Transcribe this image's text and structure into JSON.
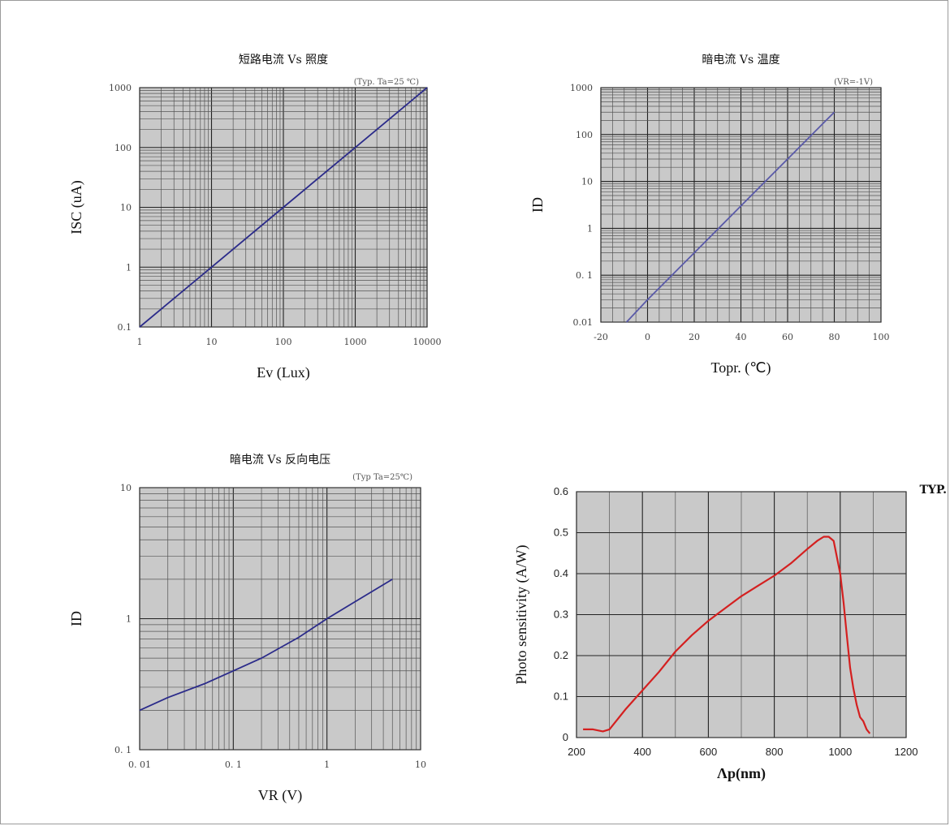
{
  "chart_data": [
    {
      "type": "line",
      "title": "短路电流 Vs 照度",
      "note": "(Typ. Ta=25 ℃)",
      "xlabel": "Ev (Lux)",
      "ylabel": "ISC (uA)",
      "x_scale": "log",
      "y_scale": "log",
      "xlim": [
        1,
        10000
      ],
      "ylim": [
        0.1,
        1000
      ],
      "x_ticks": [
        "1",
        "10",
        "100",
        "1000",
        "10000"
      ],
      "y_ticks": [
        "0.1",
        "1",
        "10",
        "100",
        "1000"
      ],
      "grid": true,
      "colors": {
        "line": "#2b2b8a",
        "plot_bg": "#c9c9c9"
      },
      "series": [
        {
          "x": [
            1,
            10,
            100,
            1000,
            10000
          ],
          "y": [
            0.1,
            1,
            10,
            100,
            1000
          ]
        }
      ]
    },
    {
      "type": "line",
      "title": "暗电流 Vs 温度",
      "note": "(VR=-1V)",
      "xlabel": "Topr. (℃)",
      "ylabel": "ID",
      "x_scale": "linear",
      "y_scale": "log",
      "xlim": [
        -20,
        100
      ],
      "ylim": [
        0.01,
        1000
      ],
      "x_ticks": [
        "-20",
        "0",
        "20",
        "40",
        "60",
        "80",
        "100"
      ],
      "y_ticks": [
        "0.01",
        "0. 1",
        "1",
        "10",
        "100",
        "1000"
      ],
      "grid": true,
      "colors": {
        "line": "#5a5aa8",
        "plot_bg": "#c9c9c9"
      },
      "series": [
        {
          "x": [
            -9,
            0,
            20,
            40,
            60,
            80
          ],
          "y": [
            0.01,
            0.03,
            0.3,
            3,
            30,
            300
          ]
        }
      ]
    },
    {
      "type": "line",
      "title": "暗电流 Vs 反向电压",
      "note": "(Typ Ta=25℃)",
      "xlabel": "VR (V)",
      "ylabel": "ID",
      "x_scale": "log",
      "y_scale": "log",
      "xlim": [
        0.01,
        10
      ],
      "ylim": [
        0.1,
        10
      ],
      "x_ticks": [
        "0. 01",
        "0. 1",
        "1",
        "10"
      ],
      "y_ticks": [
        "0. 1",
        "1",
        "10"
      ],
      "grid": true,
      "colors": {
        "line": "#2b2b8a",
        "plot_bg": "#c9c9c9"
      },
      "series": [
        {
          "x": [
            0.01,
            0.02,
            0.05,
            0.1,
            0.2,
            0.5,
            1,
            2,
            5
          ],
          "y": [
            0.2,
            0.25,
            0.32,
            0.4,
            0.5,
            0.72,
            1.0,
            1.35,
            2.0
          ]
        }
      ]
    },
    {
      "type": "line",
      "title": "",
      "note": "TYP.",
      "xlabel": "Λp(nm)",
      "ylabel": "Photo sensitivity (A/W)",
      "x_scale": "linear",
      "y_scale": "linear",
      "xlim": [
        200,
        1200
      ],
      "ylim": [
        0,
        0.6
      ],
      "x_ticks": [
        "200",
        "400",
        "600",
        "800",
        "1000",
        "1200"
      ],
      "y_ticks": [
        "0",
        "0.1",
        "0.2",
        "0.3",
        "0.4",
        "0.5",
        "0.6"
      ],
      "grid": true,
      "colors": {
        "line": "#d42020",
        "plot_bg": "#ffffff"
      },
      "series": [
        {
          "x": [
            220,
            250,
            280,
            300,
            320,
            350,
            400,
            450,
            500,
            550,
            600,
            650,
            700,
            750,
            800,
            850,
            900,
            930,
            950,
            965,
            980,
            1000,
            1010,
            1020,
            1030,
            1040,
            1050,
            1060,
            1070,
            1080,
            1090
          ],
          "y": [
            0.02,
            0.02,
            0.015,
            0.02,
            0.04,
            0.07,
            0.115,
            0.16,
            0.21,
            0.25,
            0.285,
            0.315,
            0.345,
            0.37,
            0.395,
            0.425,
            0.46,
            0.48,
            0.49,
            0.49,
            0.48,
            0.4,
            0.33,
            0.25,
            0.17,
            0.12,
            0.08,
            0.05,
            0.04,
            0.02,
            0.01
          ]
        }
      ]
    }
  ]
}
